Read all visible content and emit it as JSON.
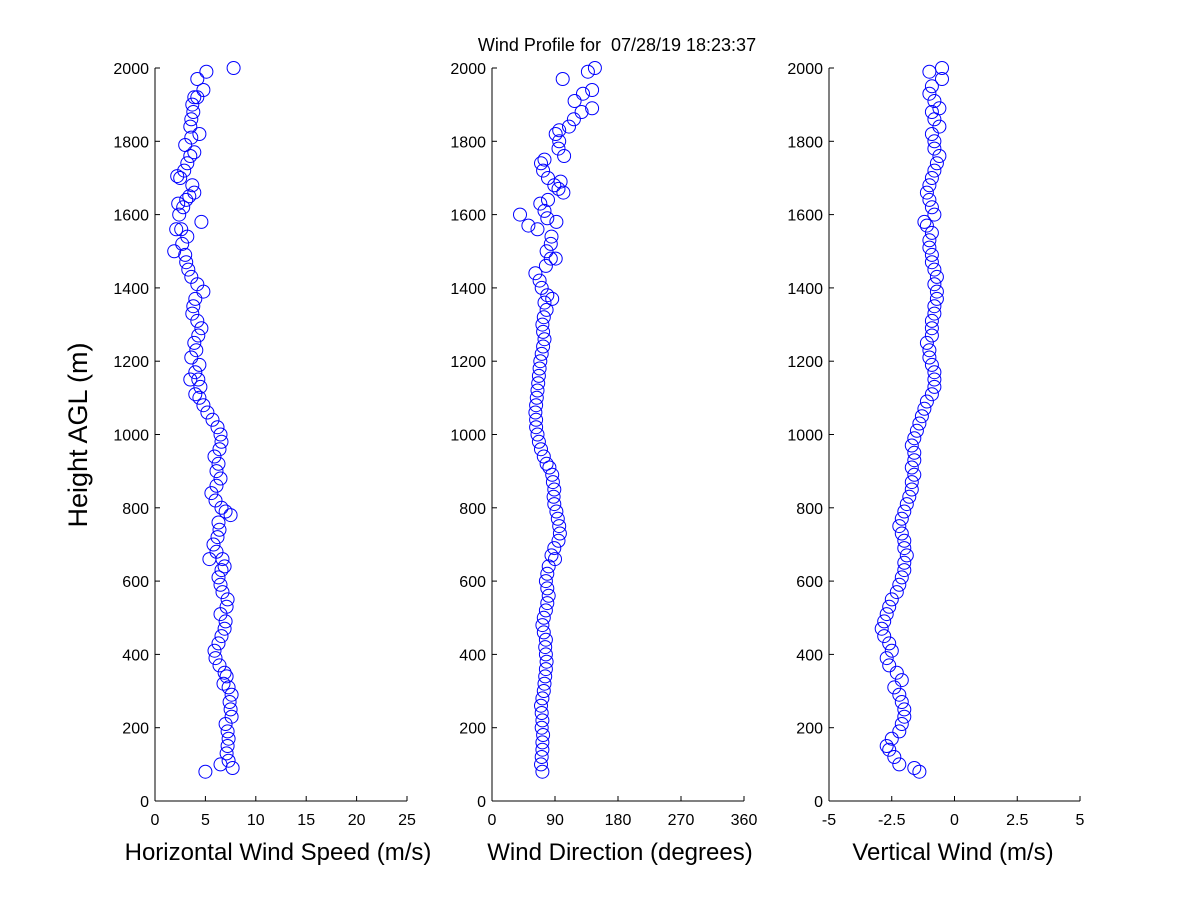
{
  "title": "Wind Profile for  07/28/19 18:23:37",
  "ylabel": "Height AGL (m)",
  "marker_color": "#0000ff",
  "chart_data": [
    {
      "type": "scatter",
      "xlabel": "Horizontal Wind Speed (m/s)",
      "ylabel": "Height AGL (m)",
      "xlim": [
        0,
        25
      ],
      "ylim": [
        0,
        2000
      ],
      "xticks": [
        "0",
        "5",
        "10",
        "15",
        "20",
        "25"
      ],
      "xtick_values": [
        0,
        5,
        10,
        15,
        20,
        25
      ],
      "yticks": [
        "0",
        "200",
        "400",
        "600",
        "800",
        "1000",
        "1200",
        "1400",
        "1600",
        "1800",
        "2000"
      ],
      "grid": false,
      "points": [
        [
          5.0,
          80
        ],
        [
          7.7,
          90
        ],
        [
          6.5,
          100
        ],
        [
          7.3,
          110
        ],
        [
          7.1,
          130
        ],
        [
          7.2,
          150
        ],
        [
          7.3,
          170
        ],
        [
          7.2,
          190
        ],
        [
          7.0,
          210
        ],
        [
          7.6,
          230
        ],
        [
          7.5,
          250
        ],
        [
          7.4,
          270
        ],
        [
          7.6,
          290
        ],
        [
          7.3,
          310
        ],
        [
          6.8,
          320
        ],
        [
          7.1,
          340
        ],
        [
          6.9,
          350
        ],
        [
          6.4,
          370
        ],
        [
          6.0,
          390
        ],
        [
          5.9,
          410
        ],
        [
          6.3,
          430
        ],
        [
          6.6,
          450
        ],
        [
          6.9,
          470
        ],
        [
          7.0,
          490
        ],
        [
          6.5,
          510
        ],
        [
          7.1,
          530
        ],
        [
          7.2,
          550
        ],
        [
          6.7,
          570
        ],
        [
          6.5,
          590
        ],
        [
          6.3,
          610
        ],
        [
          6.6,
          630
        ],
        [
          6.9,
          640
        ],
        [
          6.7,
          660
        ],
        [
          5.4,
          660
        ],
        [
          6.1,
          680
        ],
        [
          5.8,
          700
        ],
        [
          6.2,
          720
        ],
        [
          6.4,
          740
        ],
        [
          6.3,
          760
        ],
        [
          7.5,
          780
        ],
        [
          7.0,
          790
        ],
        [
          6.6,
          800
        ],
        [
          6.0,
          820
        ],
        [
          5.6,
          840
        ],
        [
          6.1,
          860
        ],
        [
          6.5,
          880
        ],
        [
          6.1,
          900
        ],
        [
          6.3,
          920
        ],
        [
          5.9,
          940
        ],
        [
          6.4,
          960
        ],
        [
          6.6,
          980
        ],
        [
          6.5,
          1000
        ],
        [
          6.2,
          1020
        ],
        [
          5.7,
          1040
        ],
        [
          5.2,
          1060
        ],
        [
          4.8,
          1080
        ],
        [
          4.4,
          1100
        ],
        [
          4.0,
          1110
        ],
        [
          4.5,
          1130
        ],
        [
          4.3,
          1150
        ],
        [
          3.5,
          1150
        ],
        [
          4.0,
          1170
        ],
        [
          4.4,
          1190
        ],
        [
          3.6,
          1210
        ],
        [
          4.1,
          1230
        ],
        [
          3.9,
          1250
        ],
        [
          4.3,
          1270
        ],
        [
          4.6,
          1290
        ],
        [
          4.2,
          1310
        ],
        [
          3.7,
          1330
        ],
        [
          3.8,
          1350
        ],
        [
          4.0,
          1370
        ],
        [
          4.8,
          1390
        ],
        [
          4.2,
          1410
        ],
        [
          3.6,
          1430
        ],
        [
          3.3,
          1450
        ],
        [
          3.1,
          1470
        ],
        [
          3.0,
          1490
        ],
        [
          1.9,
          1500
        ],
        [
          2.7,
          1520
        ],
        [
          3.2,
          1540
        ],
        [
          2.6,
          1560
        ],
        [
          2.1,
          1560
        ],
        [
          4.6,
          1580
        ],
        [
          2.4,
          1600
        ],
        [
          2.8,
          1620
        ],
        [
          2.3,
          1630
        ],
        [
          3.1,
          1640
        ],
        [
          3.4,
          1650
        ],
        [
          3.9,
          1660
        ],
        [
          3.7,
          1680
        ],
        [
          2.5,
          1700
        ],
        [
          2.2,
          1705
        ],
        [
          2.9,
          1720
        ],
        [
          3.2,
          1740
        ],
        [
          3.5,
          1760
        ],
        [
          3.9,
          1770
        ],
        [
          3.0,
          1790
        ],
        [
          3.6,
          1810
        ],
        [
          4.4,
          1820
        ],
        [
          3.5,
          1840
        ],
        [
          3.6,
          1860
        ],
        [
          3.8,
          1880
        ],
        [
          3.7,
          1900
        ],
        [
          3.9,
          1920
        ],
        [
          4.2,
          1920
        ],
        [
          4.8,
          1940
        ],
        [
          4.2,
          1970
        ],
        [
          5.1,
          1990
        ],
        [
          7.8,
          2000
        ]
      ]
    },
    {
      "type": "scatter",
      "xlabel": "Wind Direction (degrees)",
      "ylabel": "",
      "xlim": [
        0,
        360
      ],
      "ylim": [
        0,
        2000
      ],
      "xticks": [
        "0",
        "90",
        "180",
        "270",
        "360"
      ],
      "xtick_values": [
        0,
        90,
        180,
        270,
        360
      ],
      "yticks": [
        "0",
        "200",
        "400",
        "600",
        "800",
        "1000",
        "1200",
        "1400",
        "1600",
        "1800",
        "2000"
      ],
      "grid": false,
      "points": [
        [
          72,
          80
        ],
        [
          70,
          100
        ],
        [
          71,
          120
        ],
        [
          72,
          140
        ],
        [
          72,
          160
        ],
        [
          73,
          180
        ],
        [
          71,
          200
        ],
        [
          72,
          220
        ],
        [
          71,
          240
        ],
        [
          70,
          260
        ],
        [
          72,
          280
        ],
        [
          74,
          300
        ],
        [
          75,
          320
        ],
        [
          76,
          340
        ],
        [
          77,
          360
        ],
        [
          78,
          380
        ],
        [
          77,
          400
        ],
        [
          76,
          420
        ],
        [
          77,
          440
        ],
        [
          74,
          460
        ],
        [
          72,
          480
        ],
        [
          74,
          500
        ],
        [
          77,
          520
        ],
        [
          79,
          540
        ],
        [
          81,
          560
        ],
        [
          79,
          580
        ],
        [
          77,
          600
        ],
        [
          79,
          620
        ],
        [
          81,
          640
        ],
        [
          90,
          660
        ],
        [
          85,
          670
        ],
        [
          89,
          690
        ],
        [
          95,
          710
        ],
        [
          97,
          730
        ],
        [
          96,
          750
        ],
        [
          94,
          770
        ],
        [
          92,
          790
        ],
        [
          89,
          810
        ],
        [
          88,
          830
        ],
        [
          89,
          850
        ],
        [
          87,
          870
        ],
        [
          86,
          890
        ],
        [
          82,
          910
        ],
        [
          78,
          920
        ],
        [
          74,
          940
        ],
        [
          70,
          960
        ],
        [
          67,
          980
        ],
        [
          65,
          1000
        ],
        [
          63,
          1020
        ],
        [
          63,
          1040
        ],
        [
          62,
          1060
        ],
        [
          63,
          1080
        ],
        [
          64,
          1100
        ],
        [
          65,
          1120
        ],
        [
          66,
          1140
        ],
        [
          67,
          1160
        ],
        [
          68,
          1180
        ],
        [
          69,
          1200
        ],
        [
          71,
          1220
        ],
        [
          73,
          1240
        ],
        [
          75,
          1260
        ],
        [
          73,
          1280
        ],
        [
          72,
          1300
        ],
        [
          74,
          1320
        ],
        [
          78,
          1340
        ],
        [
          75,
          1360
        ],
        [
          86,
          1370
        ],
        [
          79,
          1380
        ],
        [
          71,
          1400
        ],
        [
          68,
          1420
        ],
        [
          62,
          1440
        ],
        [
          77,
          1460
        ],
        [
          84,
          1480
        ],
        [
          91,
          1480
        ],
        [
          78,
          1500
        ],
        [
          84,
          1520
        ],
        [
          85,
          1540
        ],
        [
          65,
          1560
        ],
        [
          52,
          1570
        ],
        [
          40,
          1600
        ],
        [
          92,
          1580
        ],
        [
          79,
          1590
        ],
        [
          75,
          1610
        ],
        [
          69,
          1630
        ],
        [
          80,
          1640
        ],
        [
          102,
          1660
        ],
        [
          95,
          1670
        ],
        [
          98,
          1690
        ],
        [
          89,
          1680
        ],
        [
          80,
          1700
        ],
        [
          73,
          1720
        ],
        [
          70,
          1740
        ],
        [
          75,
          1750
        ],
        [
          103,
          1760
        ],
        [
          95,
          1780
        ],
        [
          96,
          1800
        ],
        [
          91,
          1820
        ],
        [
          96,
          1830
        ],
        [
          110,
          1840
        ],
        [
          117,
          1860
        ],
        [
          128,
          1880
        ],
        [
          143,
          1890
        ],
        [
          118,
          1910
        ],
        [
          130,
          1930
        ],
        [
          143,
          1940
        ],
        [
          101,
          1970
        ],
        [
          137,
          1990
        ],
        [
          147,
          2000
        ]
      ]
    },
    {
      "type": "scatter",
      "xlabel": "Vertical Wind (m/s)",
      "ylabel": "",
      "xlim": [
        -5,
        5
      ],
      "ylim": [
        0,
        2000
      ],
      "xticks": [
        "-5",
        "-2.5",
        "0",
        "2.5",
        "5"
      ],
      "xtick_values": [
        -5,
        -2.5,
        0,
        2.5,
        5
      ],
      "yticks": [
        "0",
        "200",
        "400",
        "600",
        "800",
        "1000",
        "1200",
        "1400",
        "1600",
        "1800",
        "2000"
      ],
      "grid": false,
      "points": [
        [
          -1.4,
          80
        ],
        [
          -1.6,
          90
        ],
        [
          -2.2,
          100
        ],
        [
          -2.4,
          120
        ],
        [
          -2.6,
          140
        ],
        [
          -2.7,
          150
        ],
        [
          -2.5,
          170
        ],
        [
          -2.2,
          190
        ],
        [
          -2.1,
          210
        ],
        [
          -2.0,
          230
        ],
        [
          -2.0,
          250
        ],
        [
          -2.1,
          270
        ],
        [
          -2.2,
          290
        ],
        [
          -2.4,
          310
        ],
        [
          -2.1,
          330
        ],
        [
          -2.3,
          350
        ],
        [
          -2.6,
          370
        ],
        [
          -2.7,
          390
        ],
        [
          -2.5,
          410
        ],
        [
          -2.6,
          430
        ],
        [
          -2.8,
          450
        ],
        [
          -2.9,
          470
        ],
        [
          -2.8,
          490
        ],
        [
          -2.7,
          510
        ],
        [
          -2.6,
          530
        ],
        [
          -2.5,
          550
        ],
        [
          -2.3,
          570
        ],
        [
          -2.2,
          590
        ],
        [
          -2.1,
          610
        ],
        [
          -2.0,
          630
        ],
        [
          -2.0,
          650
        ],
        [
          -1.9,
          670
        ],
        [
          -2.0,
          690
        ],
        [
          -2.0,
          710
        ],
        [
          -2.1,
          730
        ],
        [
          -2.2,
          750
        ],
        [
          -2.1,
          770
        ],
        [
          -2.0,
          790
        ],
        [
          -1.9,
          810
        ],
        [
          -1.8,
          830
        ],
        [
          -1.7,
          850
        ],
        [
          -1.7,
          870
        ],
        [
          -1.6,
          890
        ],
        [
          -1.7,
          910
        ],
        [
          -1.6,
          930
        ],
        [
          -1.6,
          950
        ],
        [
          -1.7,
          970
        ],
        [
          -1.6,
          990
        ],
        [
          -1.5,
          1010
        ],
        [
          -1.4,
          1030
        ],
        [
          -1.3,
          1050
        ],
        [
          -1.2,
          1070
        ],
        [
          -1.1,
          1090
        ],
        [
          -0.9,
          1110
        ],
        [
          -0.8,
          1130
        ],
        [
          -0.8,
          1150
        ],
        [
          -0.8,
          1170
        ],
        [
          -0.9,
          1190
        ],
        [
          -1.0,
          1210
        ],
        [
          -1.0,
          1230
        ],
        [
          -1.1,
          1250
        ],
        [
          -0.9,
          1270
        ],
        [
          -0.9,
          1290
        ],
        [
          -0.9,
          1310
        ],
        [
          -0.8,
          1330
        ],
        [
          -0.8,
          1350
        ],
        [
          -0.7,
          1370
        ],
        [
          -0.7,
          1390
        ],
        [
          -0.8,
          1410
        ],
        [
          -0.7,
          1430
        ],
        [
          -0.8,
          1450
        ],
        [
          -0.9,
          1470
        ],
        [
          -0.9,
          1490
        ],
        [
          -1.0,
          1510
        ],
        [
          -1.0,
          1530
        ],
        [
          -0.9,
          1550
        ],
        [
          -1.1,
          1570
        ],
        [
          -1.2,
          1580
        ],
        [
          -0.8,
          1600
        ],
        [
          -0.9,
          1620
        ],
        [
          -1.0,
          1640
        ],
        [
          -1.1,
          1660
        ],
        [
          -1.0,
          1680
        ],
        [
          -0.9,
          1700
        ],
        [
          -0.8,
          1720
        ],
        [
          -0.7,
          1740
        ],
        [
          -0.6,
          1760
        ],
        [
          -0.8,
          1780
        ],
        [
          -0.8,
          1800
        ],
        [
          -0.9,
          1820
        ],
        [
          -0.6,
          1840
        ],
        [
          -0.8,
          1860
        ],
        [
          -0.9,
          1880
        ],
        [
          -0.6,
          1890
        ],
        [
          -0.8,
          1910
        ],
        [
          -1.0,
          1930
        ],
        [
          -0.9,
          1950
        ],
        [
          -0.5,
          1970
        ],
        [
          -1.0,
          1990
        ],
        [
          -0.5,
          2000
        ]
      ]
    }
  ]
}
